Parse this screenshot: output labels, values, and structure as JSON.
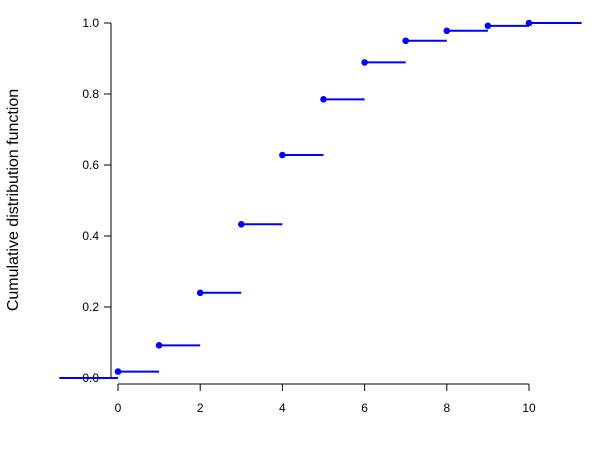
{
  "chart_data": {
    "type": "step",
    "title": "",
    "xlabel": "",
    "ylabel": "Cumulative distribution function",
    "xlim": [
      -1.5,
      11.5
    ],
    "ylim": [
      0,
      1
    ],
    "xticks": [
      0,
      2,
      4,
      6,
      8,
      10
    ],
    "yticks": [
      0.0,
      0.2,
      0.4,
      0.6,
      0.8,
      1.0
    ],
    "ytick_labels": [
      "0.0",
      "0.2",
      "0.4",
      "0.6",
      "0.8",
      "1.0"
    ],
    "grid": false,
    "color": "#0000ff",
    "points": [
      {
        "x": 0,
        "y": 0.018
      },
      {
        "x": 1,
        "y": 0.092
      },
      {
        "x": 2,
        "y": 0.24
      },
      {
        "x": 3,
        "y": 0.433
      },
      {
        "x": 4,
        "y": 0.628
      },
      {
        "x": 5,
        "y": 0.785
      },
      {
        "x": 6,
        "y": 0.889
      },
      {
        "x": 7,
        "y": 0.95
      },
      {
        "x": 8,
        "y": 0.978
      },
      {
        "x": 9,
        "y": 0.992
      },
      {
        "x": 10,
        "y": 1.0
      }
    ]
  }
}
